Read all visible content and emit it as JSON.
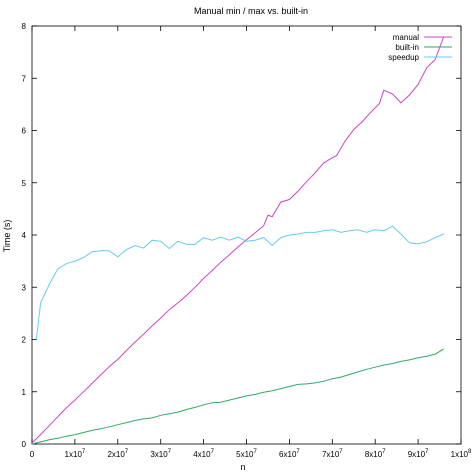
{
  "chart_data": {
    "type": "line",
    "title": "Manual min / max vs. built-in",
    "xlabel": "n",
    "ylabel": "Time (s)",
    "xlim": [
      0,
      100000000
    ],
    "ylim": [
      0,
      8
    ],
    "grid": false,
    "legend_position": "top-right",
    "x_ticks": [
      {
        "value": 0,
        "label": "0"
      },
      {
        "value": 10000000,
        "label": "1x10^7"
      },
      {
        "value": 20000000,
        "label": "2x10^7"
      },
      {
        "value": 30000000,
        "label": "3x10^7"
      },
      {
        "value": 40000000,
        "label": "4x10^7"
      },
      {
        "value": 50000000,
        "label": "5x10^7"
      },
      {
        "value": 60000000,
        "label": "6x10^7"
      },
      {
        "value": 70000000,
        "label": "7x10^7"
      },
      {
        "value": 80000000,
        "label": "8x10^7"
      },
      {
        "value": 90000000,
        "label": "9x10^7"
      },
      {
        "value": 100000000,
        "label": "1x10^8"
      }
    ],
    "y_ticks": [
      {
        "value": 0,
        "label": "0"
      },
      {
        "value": 1,
        "label": "1"
      },
      {
        "value": 2,
        "label": "2"
      },
      {
        "value": 3,
        "label": "3"
      },
      {
        "value": 4,
        "label": "4"
      },
      {
        "value": 5,
        "label": "5"
      },
      {
        "value": 6,
        "label": "6"
      },
      {
        "value": 7,
        "label": "7"
      },
      {
        "value": 8,
        "label": "8"
      }
    ],
    "series": [
      {
        "name": "manual",
        "color": "#cc44cc",
        "x": [
          0,
          2000000,
          4000000,
          6000000,
          8000000,
          10000000,
          12000000,
          14000000,
          16000000,
          18000000,
          20000000,
          22000000,
          24000000,
          26000000,
          28000000,
          30000000,
          32000000,
          34000000,
          36000000,
          38000000,
          40000000,
          42000000,
          44000000,
          46000000,
          48000000,
          50000000,
          52000000,
          54000000,
          55000000,
          56000000,
          58000000,
          60000000,
          62000000,
          64000000,
          66000000,
          68000000,
          70000000,
          71000000,
          73000000,
          75000000,
          77000000,
          79000000,
          81000000,
          82000000,
          84000000,
          85000000,
          86000000,
          88000000,
          90000000,
          92000000,
          94000000,
          96000000
        ],
        "y": [
          0.02,
          0.18,
          0.35,
          0.52,
          0.69,
          0.84,
          1.0,
          1.16,
          1.32,
          1.48,
          1.62,
          1.79,
          1.95,
          2.1,
          2.26,
          2.41,
          2.57,
          2.7,
          2.84,
          3.0,
          3.17,
          3.32,
          3.48,
          3.62,
          3.77,
          3.91,
          4.04,
          4.18,
          4.38,
          4.35,
          4.63,
          4.68,
          4.84,
          5.02,
          5.19,
          5.38,
          5.48,
          5.52,
          5.8,
          6.02,
          6.17,
          6.35,
          6.52,
          6.77,
          6.7,
          6.62,
          6.53,
          6.68,
          6.88,
          7.2,
          7.36,
          7.8
        ]
      },
      {
        "name": "built-in",
        "color": "#33aa66",
        "x": [
          0,
          2000000,
          4000000,
          6000000,
          8000000,
          10000000,
          12000000,
          14000000,
          16000000,
          18000000,
          20000000,
          22000000,
          24000000,
          26000000,
          28000000,
          30000000,
          32000000,
          34000000,
          36000000,
          38000000,
          40000000,
          42000000,
          44000000,
          46000000,
          48000000,
          50000000,
          52000000,
          54000000,
          56000000,
          58000000,
          60000000,
          62000000,
          64000000,
          66000000,
          68000000,
          70000000,
          72000000,
          74000000,
          76000000,
          78000000,
          80000000,
          82000000,
          84000000,
          86000000,
          88000000,
          90000000,
          92000000,
          94000000,
          96000000
        ],
        "y": [
          0.0,
          0.04,
          0.08,
          0.11,
          0.15,
          0.18,
          0.22,
          0.26,
          0.29,
          0.33,
          0.37,
          0.41,
          0.45,
          0.48,
          0.5,
          0.55,
          0.58,
          0.61,
          0.66,
          0.7,
          0.75,
          0.79,
          0.8,
          0.84,
          0.88,
          0.92,
          0.95,
          0.99,
          1.02,
          1.06,
          1.1,
          1.14,
          1.15,
          1.17,
          1.2,
          1.25,
          1.28,
          1.33,
          1.38,
          1.43,
          1.47,
          1.51,
          1.54,
          1.58,
          1.61,
          1.65,
          1.68,
          1.72,
          1.82
        ]
      },
      {
        "name": "speedup",
        "color": "#66ccee",
        "x": [
          1000000,
          2000000,
          4000000,
          6000000,
          8000000,
          10000000,
          12000000,
          14000000,
          16000000,
          18000000,
          20000000,
          22000000,
          24000000,
          26000000,
          28000000,
          30000000,
          32000000,
          34000000,
          36000000,
          38000000,
          40000000,
          42000000,
          44000000,
          46000000,
          48000000,
          50000000,
          52000000,
          54000000,
          56000000,
          58000000,
          60000000,
          62000000,
          64000000,
          66000000,
          68000000,
          70000000,
          72000000,
          74000000,
          76000000,
          78000000,
          80000000,
          82000000,
          84000000,
          86000000,
          88000000,
          90000000,
          92000000,
          94000000,
          96000000
        ],
        "y": [
          2.0,
          2.7,
          3.05,
          3.35,
          3.45,
          3.5,
          3.57,
          3.68,
          3.7,
          3.7,
          3.58,
          3.72,
          3.8,
          3.75,
          3.9,
          3.88,
          3.74,
          3.88,
          3.82,
          3.82,
          3.95,
          3.9,
          3.96,
          3.9,
          3.96,
          3.88,
          3.9,
          3.95,
          3.8,
          3.95,
          4.0,
          4.02,
          4.05,
          4.05,
          4.08,
          4.1,
          4.05,
          4.08,
          4.1,
          4.05,
          4.1,
          4.08,
          4.17,
          4.02,
          3.85,
          3.83,
          3.87,
          3.95,
          4.02
        ]
      }
    ]
  }
}
